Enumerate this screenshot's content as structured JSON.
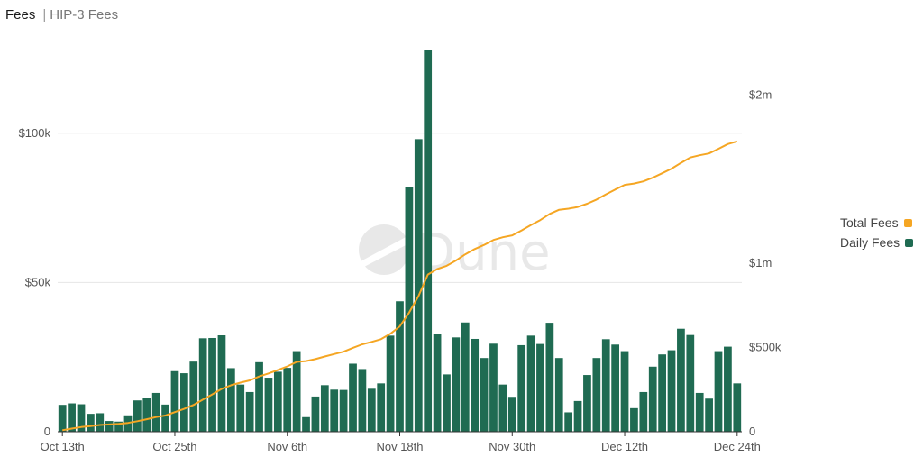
{
  "header": {
    "title": "Fees",
    "subtitle": "HIP-3 Fees",
    "separator": "|"
  },
  "watermark": "Dune",
  "legend": [
    {
      "label": "Total Fees",
      "color": "#f5a623"
    },
    {
      "label": "Daily Fees",
      "color": "#1f6b52"
    }
  ],
  "chart_data": {
    "type": "bar+line",
    "x": {
      "start_label": "Oct 13th",
      "tick_labels": [
        "Oct 13th",
        "Oct 25th",
        "Nov 6th",
        "Nov 18th",
        "Nov 30th",
        "Dec 12th",
        "Dec 24th"
      ],
      "tick_indices": [
        0,
        12,
        24,
        36,
        48,
        60,
        72
      ]
    },
    "y_left": {
      "ticks": [
        0,
        50000,
        100000
      ],
      "tick_labels": [
        "0",
        "$50k",
        "$100k"
      ],
      "ylim": [
        0,
        128000
      ]
    },
    "y_right": {
      "ticks": [
        0,
        500000,
        1000000,
        2000000
      ],
      "tick_labels": [
        "0",
        "$500k",
        "$1m",
        "$2m"
      ],
      "ylim": [
        0,
        2270000
      ]
    },
    "grid": true,
    "series": [
      {
        "name": "Daily Fees",
        "type": "bar",
        "color": "#1f6b52",
        "values": [
          9000,
          9500,
          9200,
          6000,
          6200,
          3600,
          3400,
          5500,
          10500,
          11300,
          13000,
          9100,
          20300,
          19600,
          23500,
          31300,
          31400,
          32300,
          21300,
          15800,
          13300,
          23300,
          18100,
          20100,
          21400,
          27000,
          4900,
          11800,
          15600,
          14100,
          14000,
          22800,
          21000,
          14400,
          16200,
          32200,
          43700,
          82000,
          98000,
          128000,
          32900,
          19200,
          31600,
          36600,
          31100,
          24700,
          29500,
          15800,
          11700,
          29000,
          32200,
          29400,
          36500,
          24700,
          6500,
          10300,
          19000,
          24700,
          31000,
          29200,
          27000,
          7900,
          13300,
          21800,
          25900,
          27300,
          34500,
          32400,
          13000,
          11100,
          27000,
          28500,
          16200
        ]
      },
      {
        "name": "Total Fees",
        "type": "line",
        "color": "#f5a623",
        "values": [
          9000,
          18500,
          27700,
          33700,
          39900,
          43500,
          46900,
          52400,
          62900,
          74200,
          87200,
          96300,
          116600,
          136200,
          159700,
          191000,
          222400,
          254700,
          276000,
          291800,
          305100,
          328400,
          346500,
          366600,
          388000,
          415000,
          419900,
          431700,
          447300,
          461400,
          475400,
          498200,
          519200,
          533600,
          549800,
          582000,
          625700,
          707700,
          805700,
          933700,
          966600,
          985800,
          1017400,
          1054000,
          1085100,
          1109800,
          1139300,
          1155100,
          1166800,
          1195800,
          1228000,
          1257400,
          1293900,
          1318600,
          1325100,
          1335400,
          1354400,
          1379100,
          1410100,
          1439300,
          1466300,
          1474200,
          1487500,
          1509300,
          1535200,
          1562500,
          1597000,
          1629400,
          1642400,
          1653500,
          1680500,
          1709000,
          1725200
        ]
      }
    ]
  }
}
